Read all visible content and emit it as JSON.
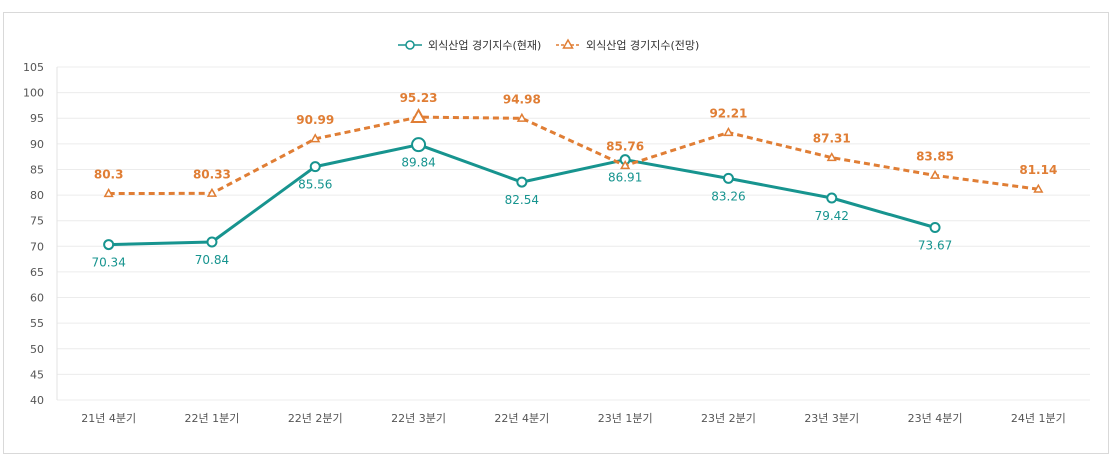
{
  "chart_data": {
    "type": "line",
    "categories": [
      "21년 4분기",
      "22년 1분기",
      "22년 2분기",
      "22년 3분기",
      "22년 4분기",
      "23년 1분기",
      "23년 2분기",
      "23년 3분기",
      "23년 4분기",
      "24년 1분기"
    ],
    "series": [
      {
        "name": "외식산업 경기지수(현재)",
        "values": [
          70.34,
          70.84,
          85.56,
          89.84,
          82.54,
          86.91,
          83.26,
          79.42,
          73.67,
          null
        ],
        "color": "#17948f",
        "marker": "circle",
        "line": "solid"
      },
      {
        "name": "외식산업 경기지수(전망)",
        "values": [
          80.3,
          80.33,
          90.99,
          95.23,
          94.98,
          85.76,
          92.21,
          87.31,
          83.85,
          81.14
        ],
        "color": "#e07e35",
        "marker": "triangle",
        "line": "dashed"
      }
    ],
    "ylim": [
      40,
      105
    ],
    "yticks": [
      105,
      100,
      95,
      90,
      85,
      80,
      75,
      70,
      65,
      60,
      55,
      50,
      45,
      40
    ],
    "grid": true,
    "legend_position": "top-center",
    "highlight_index": 3
  }
}
